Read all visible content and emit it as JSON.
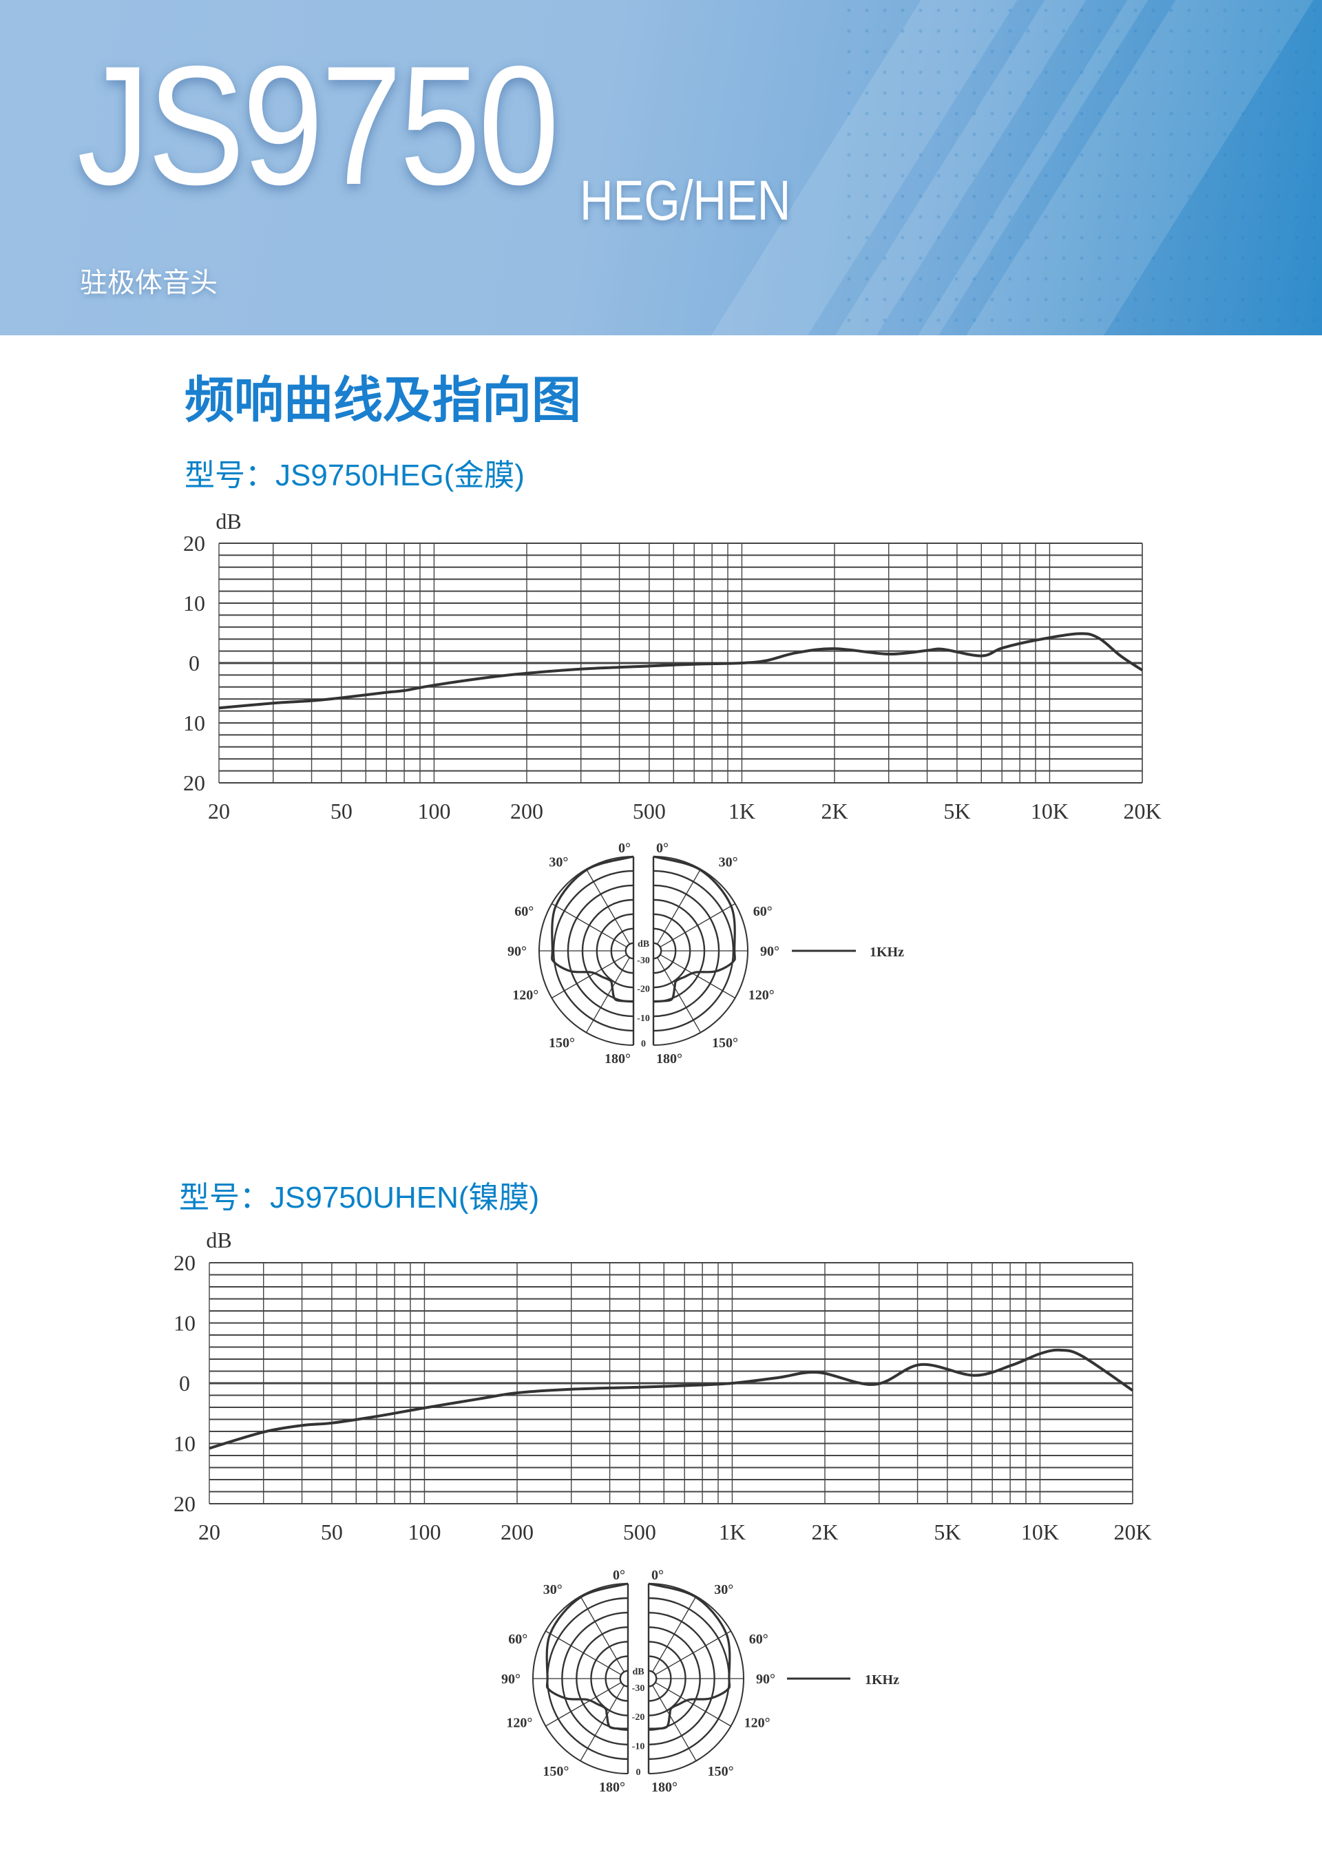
{
  "header": {
    "model": "JS9750",
    "suffix": "HEG/HEN",
    "subtitle": "驻极体音头"
  },
  "section_title": "频响曲线及指向图",
  "models": [
    {
      "label": "型号：JS9750HEG(金膜)"
    },
    {
      "label": "型号：JS9750UHEN(镍膜)"
    }
  ],
  "colors": {
    "accent": "#1a7fce",
    "curve": "#333333",
    "grid": "#444444"
  },
  "chart_data": [
    {
      "type": "line",
      "xscale": "log",
      "xlim": [
        20,
        20000
      ],
      "ylim": [
        -20,
        20
      ],
      "grid": true,
      "ylabel": "dB",
      "y_ticks": [
        20,
        10,
        0,
        -10,
        -20
      ],
      "y_tick_labels": [
        "20",
        "10",
        "0",
        "10",
        "20"
      ],
      "x_ticks": [
        20,
        50,
        100,
        200,
        500,
        1000,
        2000,
        5000,
        10000,
        20000
      ],
      "x_tick_labels": [
        "20",
        "50",
        "100",
        "200",
        "500",
        "1K",
        "2K",
        "5K",
        "10K",
        "20K"
      ],
      "series": [
        {
          "x": [
            20,
            30,
            40,
            50,
            70,
            80,
            100,
            150,
            200,
            300,
            500,
            700,
            1000,
            1200,
            1500,
            2000,
            3000,
            4000,
            4500,
            6000,
            7000,
            9000,
            12400,
            14400,
            17000,
            20000
          ],
          "y": [
            -7.5,
            -6.7,
            -6.3,
            -5.8,
            -4.9,
            -4.6,
            -3.7,
            -2.4,
            -1.7,
            -1.0,
            -0.5,
            -0.2,
            0,
            0.4,
            1.7,
            2.4,
            1.5,
            2.1,
            2.3,
            1.2,
            2.5,
            3.8,
            4.9,
            4.2,
            1.2,
            -1.2
          ]
        }
      ]
    },
    {
      "type": "polar",
      "ring_labels": [
        "dB",
        "-30",
        "-20",
        "-10",
        "0"
      ],
      "angle_labels": [
        "0°",
        "30°",
        "60°",
        "90°",
        "120°",
        "150°",
        "180°"
      ],
      "rlim_db": [
        -30,
        0
      ],
      "legend": "1KHz",
      "series": [
        {
          "name": "1KHz",
          "angle": [
            0,
            30,
            60,
            90,
            98,
            108,
            117,
            130,
            143,
            150,
            159,
            170,
            180
          ],
          "db": [
            0,
            -0.3,
            -1.6,
            -4.6,
            -4.9,
            -9.8,
            -16.3,
            -18.6,
            -19.6,
            -18,
            -14.8,
            -15,
            -15.2
          ]
        }
      ]
    },
    {
      "type": "line",
      "xscale": "log",
      "xlim": [
        20,
        20000
      ],
      "ylim": [
        -20,
        20
      ],
      "grid": true,
      "ylabel": "dB",
      "y_ticks": [
        20,
        10,
        0,
        -10,
        -20
      ],
      "y_tick_labels": [
        "20",
        "10",
        "0",
        "10",
        "20"
      ],
      "x_ticks": [
        20,
        50,
        100,
        200,
        500,
        1000,
        2000,
        5000,
        10000,
        20000
      ],
      "x_tick_labels": [
        "20",
        "50",
        "100",
        "200",
        "500",
        "1K",
        "2K",
        "5K",
        "10K",
        "20K"
      ],
      "series": [
        {
          "x": [
            20,
            30,
            40,
            50,
            70,
            100,
            150,
            200,
            300,
            500,
            700,
            1000,
            1400,
            1900,
            2900,
            4100,
            6100,
            8100,
            10000,
            11600,
            13700,
            20000
          ],
          "y": [
            -10.8,
            -8.1,
            -7,
            -6.6,
            -5.5,
            -4.1,
            -2.6,
            -1.6,
            -1.0,
            -0.65,
            -0.4,
            0,
            0.9,
            1.8,
            -0.2,
            3.1,
            1.3,
            3.0,
            4.9,
            5.5,
            4.5,
            -1.2
          ]
        }
      ]
    },
    {
      "type": "polar",
      "ring_labels": [
        "dB",
        "-30",
        "-20",
        "-10",
        "0"
      ],
      "angle_labels": [
        "0°",
        "30°",
        "60°",
        "90°",
        "120°",
        "150°",
        "180°"
      ],
      "rlim_db": [
        -30,
        0
      ],
      "legend": "1KHz",
      "series": [
        {
          "name": "1KHz",
          "angle": [
            0,
            30,
            60,
            90,
            98,
            108,
            117,
            130,
            143,
            150,
            159,
            170,
            180
          ],
          "db": [
            0,
            -0.3,
            -1.8,
            -5,
            -5.3,
            -10.5,
            -16.8,
            -19,
            -19.8,
            -18.2,
            -15,
            -15.2,
            -15.4
          ]
        }
      ]
    }
  ]
}
